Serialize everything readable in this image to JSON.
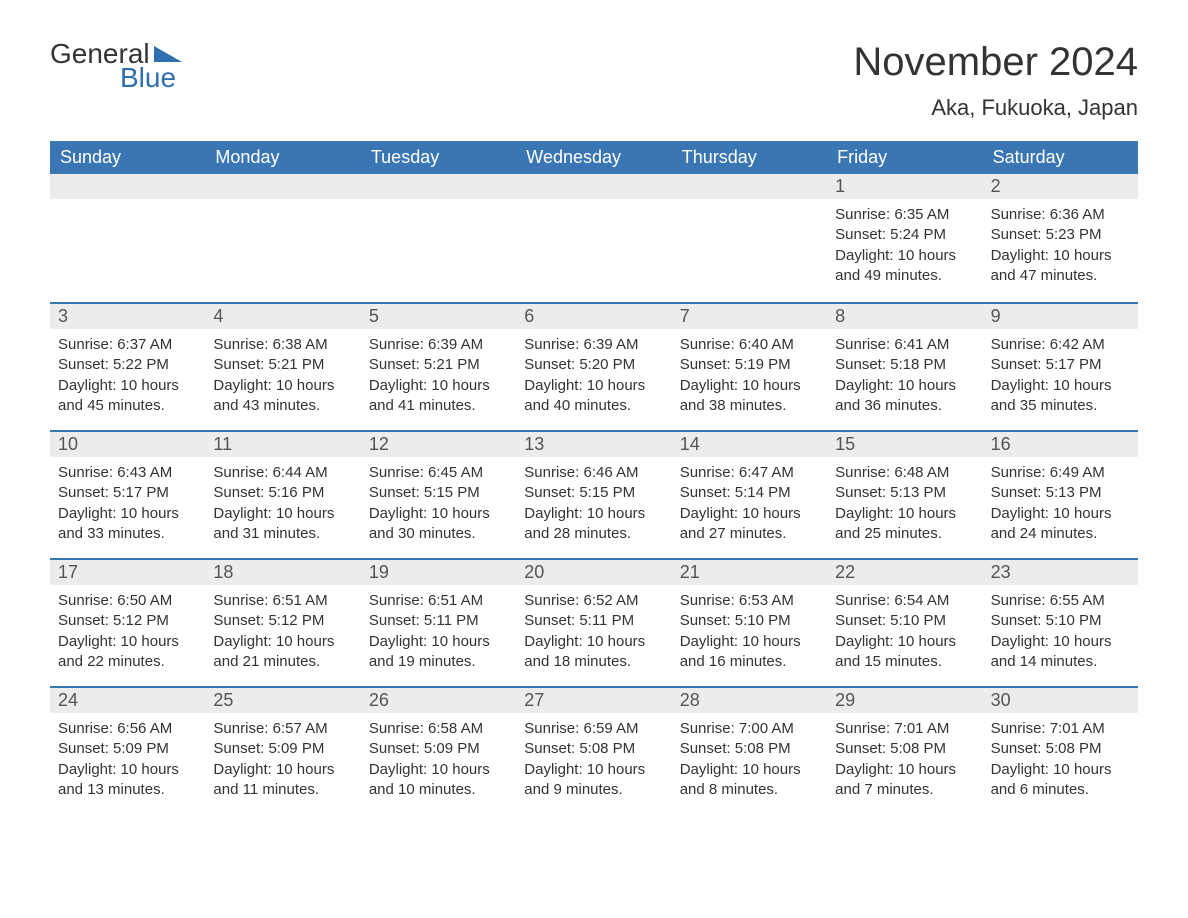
{
  "logo": {
    "top": "General",
    "bottom": "Blue"
  },
  "title": "November 2024",
  "location": "Aka, Fukuoka, Japan",
  "colors": {
    "header_bg": "#3a76b4",
    "header_text": "#ffffff",
    "daynum_bg": "#ececec",
    "week_border": "#3a76b4",
    "text": "#333333",
    "logo_accent": "#2f6fb0"
  },
  "layout": {
    "columns": 7,
    "rows": 5
  },
  "weekdays": [
    "Sunday",
    "Monday",
    "Tuesday",
    "Wednesday",
    "Thursday",
    "Friday",
    "Saturday"
  ],
  "weeks": [
    [
      null,
      null,
      null,
      null,
      null,
      {
        "n": "1",
        "sunrise": "Sunrise: 6:35 AM",
        "sunset": "Sunset: 5:24 PM",
        "daylight": "Daylight: 10 hours and 49 minutes."
      },
      {
        "n": "2",
        "sunrise": "Sunrise: 6:36 AM",
        "sunset": "Sunset: 5:23 PM",
        "daylight": "Daylight: 10 hours and 47 minutes."
      }
    ],
    [
      {
        "n": "3",
        "sunrise": "Sunrise: 6:37 AM",
        "sunset": "Sunset: 5:22 PM",
        "daylight": "Daylight: 10 hours and 45 minutes."
      },
      {
        "n": "4",
        "sunrise": "Sunrise: 6:38 AM",
        "sunset": "Sunset: 5:21 PM",
        "daylight": "Daylight: 10 hours and 43 minutes."
      },
      {
        "n": "5",
        "sunrise": "Sunrise: 6:39 AM",
        "sunset": "Sunset: 5:21 PM",
        "daylight": "Daylight: 10 hours and 41 minutes."
      },
      {
        "n": "6",
        "sunrise": "Sunrise: 6:39 AM",
        "sunset": "Sunset: 5:20 PM",
        "daylight": "Daylight: 10 hours and 40 minutes."
      },
      {
        "n": "7",
        "sunrise": "Sunrise: 6:40 AM",
        "sunset": "Sunset: 5:19 PM",
        "daylight": "Daylight: 10 hours and 38 minutes."
      },
      {
        "n": "8",
        "sunrise": "Sunrise: 6:41 AM",
        "sunset": "Sunset: 5:18 PM",
        "daylight": "Daylight: 10 hours and 36 minutes."
      },
      {
        "n": "9",
        "sunrise": "Sunrise: 6:42 AM",
        "sunset": "Sunset: 5:17 PM",
        "daylight": "Daylight: 10 hours and 35 minutes."
      }
    ],
    [
      {
        "n": "10",
        "sunrise": "Sunrise: 6:43 AM",
        "sunset": "Sunset: 5:17 PM",
        "daylight": "Daylight: 10 hours and 33 minutes."
      },
      {
        "n": "11",
        "sunrise": "Sunrise: 6:44 AM",
        "sunset": "Sunset: 5:16 PM",
        "daylight": "Daylight: 10 hours and 31 minutes."
      },
      {
        "n": "12",
        "sunrise": "Sunrise: 6:45 AM",
        "sunset": "Sunset: 5:15 PM",
        "daylight": "Daylight: 10 hours and 30 minutes."
      },
      {
        "n": "13",
        "sunrise": "Sunrise: 6:46 AM",
        "sunset": "Sunset: 5:15 PM",
        "daylight": "Daylight: 10 hours and 28 minutes."
      },
      {
        "n": "14",
        "sunrise": "Sunrise: 6:47 AM",
        "sunset": "Sunset: 5:14 PM",
        "daylight": "Daylight: 10 hours and 27 minutes."
      },
      {
        "n": "15",
        "sunrise": "Sunrise: 6:48 AM",
        "sunset": "Sunset: 5:13 PM",
        "daylight": "Daylight: 10 hours and 25 minutes."
      },
      {
        "n": "16",
        "sunrise": "Sunrise: 6:49 AM",
        "sunset": "Sunset: 5:13 PM",
        "daylight": "Daylight: 10 hours and 24 minutes."
      }
    ],
    [
      {
        "n": "17",
        "sunrise": "Sunrise: 6:50 AM",
        "sunset": "Sunset: 5:12 PM",
        "daylight": "Daylight: 10 hours and 22 minutes."
      },
      {
        "n": "18",
        "sunrise": "Sunrise: 6:51 AM",
        "sunset": "Sunset: 5:12 PM",
        "daylight": "Daylight: 10 hours and 21 minutes."
      },
      {
        "n": "19",
        "sunrise": "Sunrise: 6:51 AM",
        "sunset": "Sunset: 5:11 PM",
        "daylight": "Daylight: 10 hours and 19 minutes."
      },
      {
        "n": "20",
        "sunrise": "Sunrise: 6:52 AM",
        "sunset": "Sunset: 5:11 PM",
        "daylight": "Daylight: 10 hours and 18 minutes."
      },
      {
        "n": "21",
        "sunrise": "Sunrise: 6:53 AM",
        "sunset": "Sunset: 5:10 PM",
        "daylight": "Daylight: 10 hours and 16 minutes."
      },
      {
        "n": "22",
        "sunrise": "Sunrise: 6:54 AM",
        "sunset": "Sunset: 5:10 PM",
        "daylight": "Daylight: 10 hours and 15 minutes."
      },
      {
        "n": "23",
        "sunrise": "Sunrise: 6:55 AM",
        "sunset": "Sunset: 5:10 PM",
        "daylight": "Daylight: 10 hours and 14 minutes."
      }
    ],
    [
      {
        "n": "24",
        "sunrise": "Sunrise: 6:56 AM",
        "sunset": "Sunset: 5:09 PM",
        "daylight": "Daylight: 10 hours and 13 minutes."
      },
      {
        "n": "25",
        "sunrise": "Sunrise: 6:57 AM",
        "sunset": "Sunset: 5:09 PM",
        "daylight": "Daylight: 10 hours and 11 minutes."
      },
      {
        "n": "26",
        "sunrise": "Sunrise: 6:58 AM",
        "sunset": "Sunset: 5:09 PM",
        "daylight": "Daylight: 10 hours and 10 minutes."
      },
      {
        "n": "27",
        "sunrise": "Sunrise: 6:59 AM",
        "sunset": "Sunset: 5:08 PM",
        "daylight": "Daylight: 10 hours and 9 minutes."
      },
      {
        "n": "28",
        "sunrise": "Sunrise: 7:00 AM",
        "sunset": "Sunset: 5:08 PM",
        "daylight": "Daylight: 10 hours and 8 minutes."
      },
      {
        "n": "29",
        "sunrise": "Sunrise: 7:01 AM",
        "sunset": "Sunset: 5:08 PM",
        "daylight": "Daylight: 10 hours and 7 minutes."
      },
      {
        "n": "30",
        "sunrise": "Sunrise: 7:01 AM",
        "sunset": "Sunset: 5:08 PM",
        "daylight": "Daylight: 10 hours and 6 minutes."
      }
    ]
  ]
}
